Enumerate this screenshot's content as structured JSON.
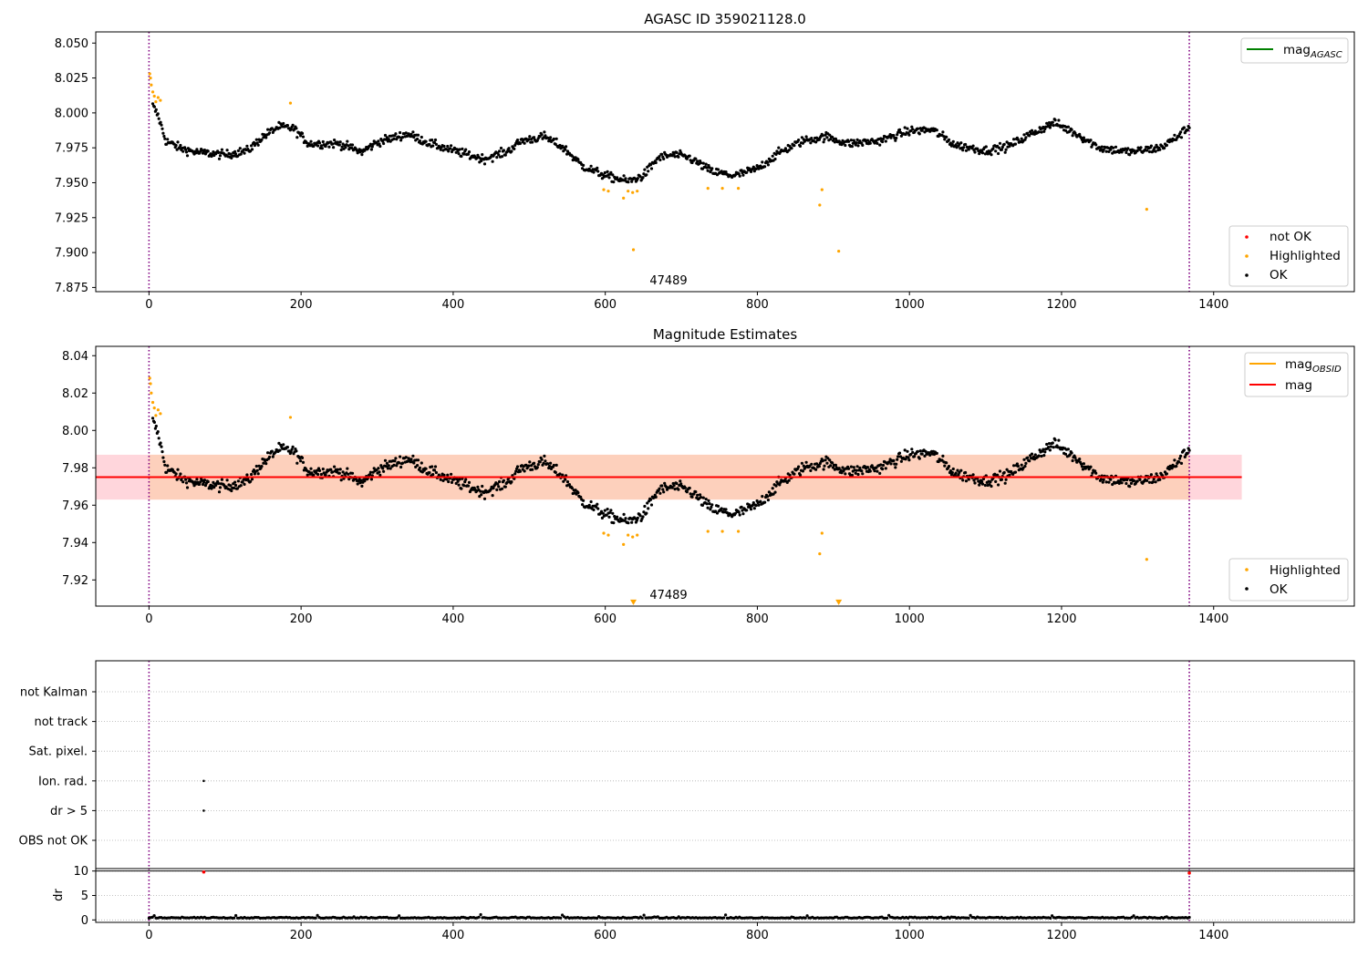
{
  "chart_data": [
    {
      "type": "scatter",
      "title": "AGASC ID 359021128.0",
      "xlim": [
        -70,
        1585
      ],
      "ylim": [
        7.872,
        8.058
      ],
      "xticks": [
        0,
        200,
        400,
        600,
        800,
        1000,
        1200,
        1400
      ],
      "yticks": [
        7.875,
        7.9,
        7.925,
        7.95,
        7.975,
        8.0,
        8.025,
        8.05
      ],
      "ytick_labels": [
        "7.875",
        "7.900",
        "7.925",
        "7.950",
        "7.975",
        "8.000",
        "8.025",
        "8.050"
      ],
      "vlines_x": [
        0,
        1368
      ],
      "annotation": {
        "text": "47489",
        "x": 686,
        "y": 7.879
      },
      "line_legend": {
        "label": "mag",
        "subscript": "AGASC",
        "color": "#008000",
        "placement": "upper right"
      },
      "marker_legend": {
        "placement": "lower right",
        "entries": [
          {
            "label": "not OK",
            "color": "#ff0000"
          },
          {
            "label": "Highlighted",
            "color": "#ffa500"
          },
          {
            "label": "OK",
            "color": "#000000"
          }
        ]
      },
      "highlighted_points": [
        [
          1,
          8.028
        ],
        [
          2,
          8.025
        ],
        [
          3,
          8.02
        ],
        [
          5,
          8.015
        ],
        [
          7,
          8.012
        ],
        [
          9,
          8.008
        ],
        [
          12,
          8.011
        ],
        [
          15,
          8.009
        ],
        [
          186,
          8.007
        ],
        [
          598,
          7.945
        ],
        [
          604,
          7.944
        ],
        [
          624,
          7.939
        ],
        [
          630,
          7.944
        ],
        [
          636,
          7.943
        ],
        [
          642,
          7.944
        ],
        [
          637,
          7.902
        ],
        [
          735,
          7.946
        ],
        [
          754,
          7.946
        ],
        [
          775,
          7.946
        ],
        [
          882,
          7.934
        ],
        [
          885,
          7.945
        ],
        [
          907,
          7.901
        ],
        [
          1312,
          7.931
        ]
      ],
      "ok_points_shape": {
        "x_range": [
          5,
          1368
        ],
        "count": 1200,
        "anchors": [
          [
            5,
            8.005
          ],
          [
            12,
            7.998
          ],
          [
            22,
            7.98
          ],
          [
            40,
            7.975
          ],
          [
            60,
            7.972
          ],
          [
            100,
            7.97
          ],
          [
            130,
            7.973
          ],
          [
            150,
            7.983
          ],
          [
            170,
            7.99
          ],
          [
            190,
            7.989
          ],
          [
            210,
            7.978
          ],
          [
            250,
            7.978
          ],
          [
            280,
            7.972
          ],
          [
            300,
            7.979
          ],
          [
            340,
            7.985
          ],
          [
            370,
            7.978
          ],
          [
            400,
            7.973
          ],
          [
            440,
            7.967
          ],
          [
            470,
            7.972
          ],
          [
            490,
            7.98
          ],
          [
            520,
            7.983
          ],
          [
            545,
            7.975
          ],
          [
            570,
            7.962
          ],
          [
            600,
            7.955
          ],
          [
            630,
            7.951
          ],
          [
            650,
            7.955
          ],
          [
            670,
            7.968
          ],
          [
            690,
            7.97
          ],
          [
            710,
            7.968
          ],
          [
            740,
            7.958
          ],
          [
            770,
            7.955
          ],
          [
            800,
            7.96
          ],
          [
            830,
            7.972
          ],
          [
            860,
            7.98
          ],
          [
            890,
            7.983
          ],
          [
            920,
            7.978
          ],
          [
            960,
            7.98
          ],
          [
            1000,
            7.987
          ],
          [
            1030,
            7.988
          ],
          [
            1060,
            7.977
          ],
          [
            1100,
            7.973
          ],
          [
            1130,
            7.976
          ],
          [
            1160,
            7.985
          ],
          [
            1190,
            7.993
          ],
          [
            1220,
            7.985
          ],
          [
            1250,
            7.975
          ],
          [
            1290,
            7.972
          ],
          [
            1330,
            7.975
          ],
          [
            1350,
            7.982
          ],
          [
            1368,
            7.99
          ]
        ],
        "scatter": 0.006
      }
    },
    {
      "type": "scatter",
      "title": "Magnitude Estimates",
      "xlim": [
        -70,
        1585
      ],
      "ylim": [
        7.906,
        8.045
      ],
      "xticks": [
        0,
        200,
        400,
        600,
        800,
        1000,
        1200,
        1400
      ],
      "yticks": [
        7.92,
        7.94,
        7.96,
        7.98,
        8.0,
        8.02,
        8.04
      ],
      "ytick_labels": [
        "7.92",
        "7.94",
        "7.96",
        "7.98",
        "8.00",
        "8.02",
        "8.04"
      ],
      "vlines_x": [
        0,
        1368
      ],
      "annotation": {
        "text": "47489",
        "x": 686,
        "y": 7.9125
      },
      "mag_line": {
        "y": 7.975,
        "x_range": [
          -70,
          1437
        ],
        "color": "#ff0000"
      },
      "band_outer": {
        "y_range": [
          7.963,
          7.987
        ],
        "color": "#ffd6dc"
      },
      "band_inner": {
        "x_range": [
          0,
          1368
        ],
        "y_range": [
          7.963,
          7.987
        ],
        "color": "#fdd0bc"
      },
      "line_legend": {
        "placement": "upper right",
        "entries": [
          {
            "label": "mag",
            "subscript": "OBSID",
            "color": "#ffa500"
          },
          {
            "label": "mag",
            "subscript": "",
            "color": "#ff0000"
          }
        ]
      },
      "marker_legend": {
        "placement": "lower right",
        "entries": [
          {
            "label": "Highlighted",
            "color": "#ffa500"
          },
          {
            "label": "OK",
            "color": "#000000"
          }
        ]
      },
      "highlighted_points": [
        [
          1,
          8.028
        ],
        [
          2,
          8.025
        ],
        [
          3,
          8.02
        ],
        [
          5,
          8.015
        ],
        [
          7,
          8.012
        ],
        [
          9,
          8.008
        ],
        [
          12,
          8.011
        ],
        [
          15,
          8.009
        ],
        [
          186,
          8.007
        ],
        [
          598,
          7.945
        ],
        [
          604,
          7.944
        ],
        [
          624,
          7.939
        ],
        [
          630,
          7.944
        ],
        [
          636,
          7.943
        ],
        [
          642,
          7.944
        ],
        [
          735,
          7.946
        ],
        [
          754,
          7.946
        ],
        [
          775,
          7.946
        ],
        [
          882,
          7.934
        ],
        [
          885,
          7.945
        ],
        [
          1312,
          7.931
        ]
      ],
      "offscale_markers": [
        [
          637,
          7.908
        ],
        [
          907,
          7.908
        ]
      ],
      "ok_points_shape": "same as panel 1"
    },
    {
      "type": "scatter",
      "title": "",
      "xlim": [
        -70,
        1585
      ],
      "vlines_x": [
        0,
        1368
      ],
      "flag_rows": [
        "not Kalman",
        "not track",
        "Sat. pixel.",
        "Ion. rad.",
        "dr > 5",
        "OBS not OK"
      ],
      "flag_points": [
        {
          "row": "Ion. rad.",
          "x": 72
        },
        {
          "row": "dr > 5",
          "x": 72
        }
      ]
    },
    {
      "type": "line",
      "title": "",
      "ylabel": "dr",
      "xlim": [
        -70,
        1585
      ],
      "ylim": [
        -0.5,
        10.5
      ],
      "xticks": [
        0,
        200,
        400,
        600,
        800,
        1000,
        1200,
        1400
      ],
      "yticks": [
        0,
        5,
        10
      ],
      "ytick_labels": [
        "0",
        "5",
        "10"
      ],
      "vlines_x": [
        0,
        1368
      ],
      "hline_y": 10,
      "outliers": [
        [
          72,
          9.8
        ],
        [
          1368,
          9.6
        ]
      ],
      "baseline": {
        "x_range": [
          0,
          1368
        ],
        "mean": 0.35,
        "spread": 0.5
      }
    }
  ]
}
